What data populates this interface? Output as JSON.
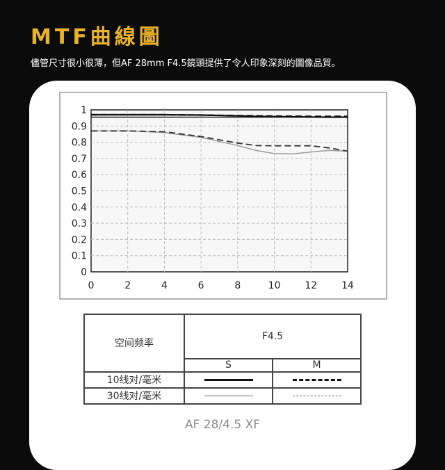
{
  "header": {
    "title": "MTF曲線圖",
    "subtitle": "儘管尺寸很小很薄，但AF 28mm F4.5鏡頭提供了令人印象深刻的圖像品質。"
  },
  "chart_data": {
    "type": "line",
    "xlim": [
      0,
      14
    ],
    "ylim": [
      0,
      1
    ],
    "grid": true,
    "xticks": [
      "0",
      "2",
      "4",
      "6",
      "8",
      "10",
      "12",
      "14"
    ],
    "yticks": [
      "0",
      "0.1",
      "0.2",
      "0.3",
      "0.4",
      "0.5",
      "0.6",
      "0.7",
      "0.8",
      "0.9",
      "1"
    ],
    "x": [
      0,
      2,
      4,
      6,
      8,
      9,
      10,
      11,
      12,
      13,
      14
    ],
    "series": [
      {
        "name": "10线对/毫米 S",
        "style": "solid",
        "color": "#111111",
        "values": [
          0.97,
          0.97,
          0.97,
          0.968,
          0.963,
          0.96,
          0.958,
          0.957,
          0.956,
          0.955,
          0.955
        ]
      },
      {
        "name": "10线对/毫米 M",
        "style": "dashed",
        "color": "#111111",
        "values": [
          0.97,
          0.97,
          0.97,
          0.968,
          0.965,
          0.963,
          0.962,
          0.961,
          0.96,
          0.96,
          0.96
        ]
      },
      {
        "name": "30线对/毫米 S",
        "style": "solid",
        "color": "#999999",
        "values": [
          0.87,
          0.87,
          0.86,
          0.83,
          0.78,
          0.75,
          0.73,
          0.728,
          0.74,
          0.75,
          0.745
        ]
      },
      {
        "name": "30线对/毫米 M",
        "style": "dashed",
        "color": "#333333",
        "values": [
          0.87,
          0.87,
          0.865,
          0.835,
          0.795,
          0.78,
          0.778,
          0.778,
          0.778,
          0.765,
          0.745
        ]
      }
    ]
  },
  "legend": {
    "freq_header": "空间频率",
    "aperture": "F4.5",
    "s": "S",
    "m": "M",
    "row1": "10线对/毫米",
    "row2": "30线对/毫米"
  },
  "caption": "AF 28/4.5 XF"
}
